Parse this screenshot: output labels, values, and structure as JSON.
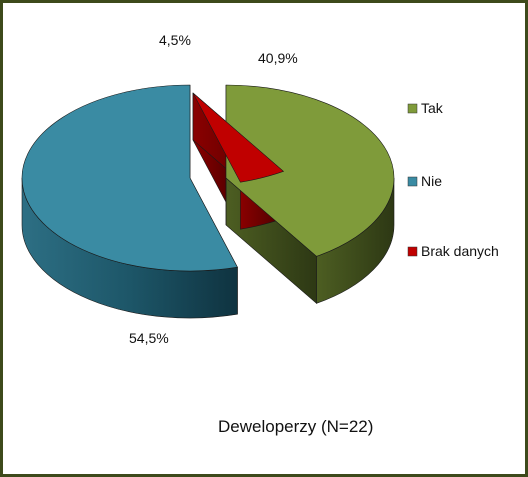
{
  "chart_data": {
    "type": "pie",
    "caption": "Deweloperzy (N=22)",
    "slices": [
      {
        "name": "Tak",
        "value": 40.9,
        "label": "40,9%",
        "color": "#7f9b3a"
      },
      {
        "name": "Brak danych",
        "value": 4.5,
        "label": "4,5%",
        "color": "#c00000"
      },
      {
        "name": "Nie",
        "value": 54.5,
        "label": "54,5%",
        "color": "#3a8ba3"
      }
    ],
    "legend": {
      "placement": "right",
      "items": [
        {
          "label": "Tak",
          "color": "#7f9b3a"
        },
        {
          "label": "Nie",
          "color": "#3a8ba3"
        },
        {
          "label": "Brak danych",
          "color": "#c00000"
        }
      ]
    }
  }
}
